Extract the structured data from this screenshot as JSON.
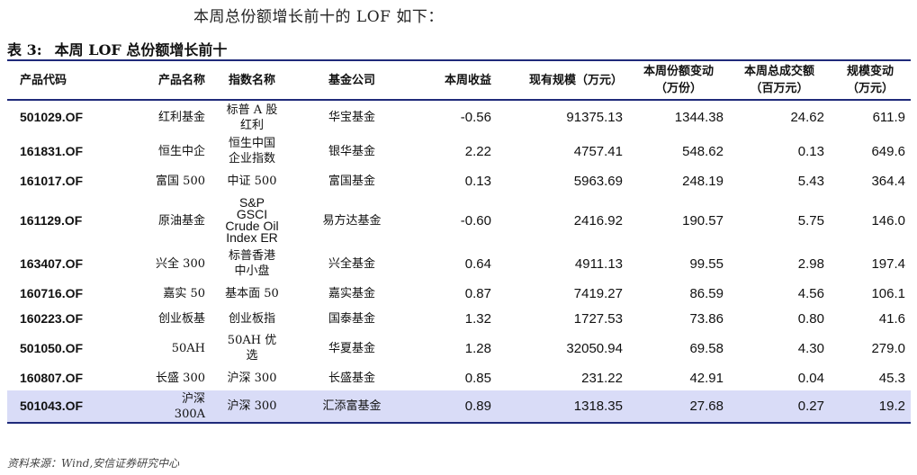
{
  "intro_text": "本周总份额增长前十的 LOF 如下：",
  "caption": {
    "label": "表 3:",
    "title": "本周 LOF 总份额增长前十"
  },
  "headers": [
    "产品代码",
    "产品名称",
    "指数名称",
    "基金公司",
    "本周收益",
    "现有规模（万元）",
    "本周份额变动\n（万份）",
    "本周总成交额\n（百万元）",
    "规模变动\n（万元）"
  ],
  "rows": [
    {
      "code": "501029.OF",
      "name": "红利基金",
      "index": "标普 A 股\n红利",
      "company": "华宝基金",
      "ret": "-0.56",
      "scale": "91375.13",
      "share_chg": "1344.38",
      "turnover": "24.62",
      "scale_chg": "611.9"
    },
    {
      "code": "161831.OF",
      "name": "恒生中企",
      "index": "恒生中国\n企业指数",
      "company": "银华基金",
      "ret": "2.22",
      "scale": "4757.41",
      "share_chg": "548.62",
      "turnover": "0.13",
      "scale_chg": "649.6"
    },
    {
      "code": "161017.OF",
      "name": "富国 500",
      "index": "中证 500",
      "company": "富国基金",
      "ret": "0.13",
      "scale": "5963.69",
      "share_chg": "248.19",
      "turnover": "5.43",
      "scale_chg": "364.4"
    },
    {
      "code": "161129.OF",
      "name": "原油基金",
      "index": "S&P\nGSCI\nCrude Oil\nIndex ER",
      "company": "易方达基金",
      "ret": "-0.60",
      "scale": "2416.92",
      "share_chg": "190.57",
      "turnover": "5.75",
      "scale_chg": "146.0"
    },
    {
      "code": "163407.OF",
      "name": "兴全 300",
      "index": "标普香港\n中小盘",
      "company": "兴全基金",
      "ret": "0.64",
      "scale": "4911.13",
      "share_chg": "99.55",
      "turnover": "2.98",
      "scale_chg": "197.4"
    },
    {
      "code": "160716.OF",
      "name": "嘉实 50",
      "index": "基本面 50",
      "company": "嘉实基金",
      "ret": "0.87",
      "scale": "7419.27",
      "share_chg": "86.59",
      "turnover": "4.56",
      "scale_chg": "106.1"
    },
    {
      "code": "160223.OF",
      "name": "创业板基",
      "index": "创业板指",
      "company": "国泰基金",
      "ret": "1.32",
      "scale": "1727.53",
      "share_chg": "73.86",
      "turnover": "0.80",
      "scale_chg": "41.6"
    },
    {
      "code": "501050.OF",
      "name": "50AH",
      "index": "50AH 优\n选",
      "company": "华夏基金",
      "ret": "1.28",
      "scale": "32050.94",
      "share_chg": "69.58",
      "turnover": "4.30",
      "scale_chg": "279.0"
    },
    {
      "code": "160807.OF",
      "name": "长盛 300",
      "index": "沪深 300",
      "company": "长盛基金",
      "ret": "0.85",
      "scale": "231.22",
      "share_chg": "42.91",
      "turnover": "0.04",
      "scale_chg": "45.3"
    },
    {
      "code": "501043.OF",
      "name": "沪深\n300A",
      "index": "沪深 300",
      "company": "汇添富基金",
      "ret": "0.89",
      "scale": "1318.35",
      "share_chg": "27.68",
      "turnover": "0.27",
      "scale_chg": "19.2"
    }
  ],
  "source": "资料来源：Wind,安信证券研究中心",
  "colors": {
    "rule": "#1f2a7a",
    "highlight_row": "#d9dcf7"
  }
}
